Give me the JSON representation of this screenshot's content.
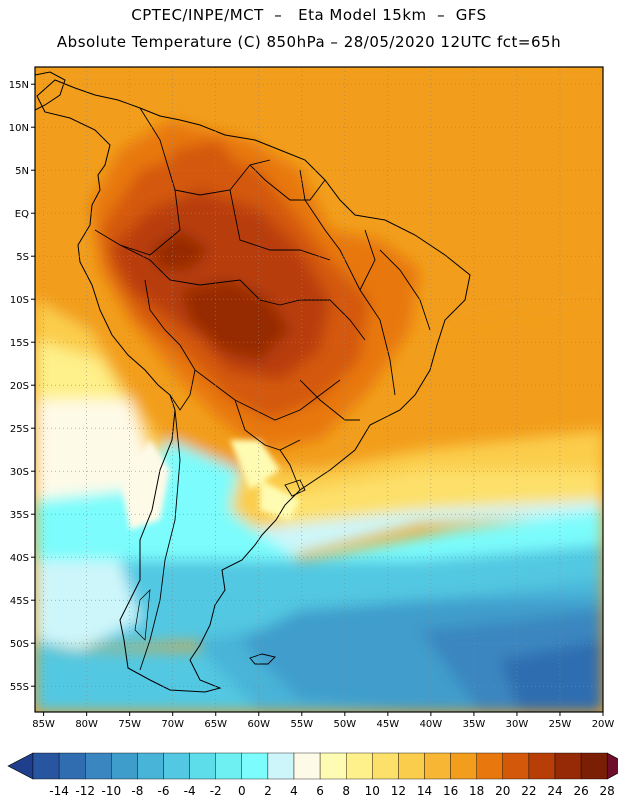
{
  "title": {
    "line1": "CPTEC/INPE/MCT  –   Eta Model 15km  –  GFS",
    "line2": "Absolute Temperature (C) 850hPa – 28/05/2020 12UTC fct=65h"
  },
  "map": {
    "lon_labels": [
      "85W",
      "80W",
      "75W",
      "70W",
      "65W",
      "60W",
      "55W",
      "50W",
      "45W",
      "40W",
      "35W",
      "30W",
      "25W",
      "20W"
    ],
    "lat_labels": [
      "15N",
      "10N",
      "5N",
      "EQ",
      "5S",
      "10S",
      "15S",
      "20S",
      "25S",
      "30S",
      "35S",
      "40S",
      "45S",
      "50S",
      "55S"
    ],
    "lon_range": [
      -86,
      -20
    ],
    "lat_range": [
      17,
      -58
    ]
  },
  "colorbar": {
    "labels": [
      "-14",
      "-12",
      "-10",
      "-8",
      "-6",
      "-4",
      "-2",
      "0",
      "2",
      "4",
      "6",
      "8",
      "10",
      "12",
      "14",
      "16",
      "18",
      "20",
      "22",
      "24",
      "26",
      "28"
    ],
    "colors": [
      "#1f3f8c",
      "#2855a0",
      "#2f6db0",
      "#3a86c0",
      "#3f9dcc",
      "#48b4d8",
      "#52c8e2",
      "#5ddcea",
      "#6ef0f2",
      "#7cfcfc",
      "#cdf6fa",
      "#fefae8",
      "#fefcb2",
      "#fef08a",
      "#fde06a",
      "#fbcd4c",
      "#f7b634",
      "#f29e1c",
      "#e8780e",
      "#d4580a",
      "#b83e08",
      "#962a06",
      "#7a1e06",
      "#6e0e2a"
    ]
  }
}
